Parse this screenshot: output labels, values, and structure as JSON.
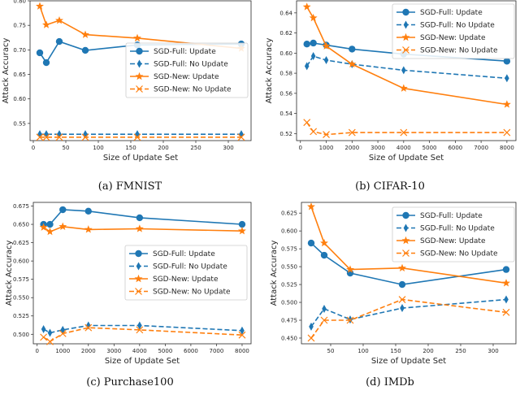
{
  "colors": {
    "sgd_full": "#1f77b4",
    "sgd_new": "#ff7f0e"
  },
  "chart_data": [
    {
      "type": "line",
      "caption": "(a) FMNIST",
      "xlabel": "Size of Update Set",
      "ylabel": "Attack Accuracy",
      "xlim": [
        -5,
        335
      ],
      "ylim": [
        0.515,
        0.8
      ],
      "xticks": [
        0,
        50,
        100,
        150,
        200,
        250,
        300
      ],
      "yticks": [
        "0.55",
        "0.60",
        "0.65",
        "0.70",
        "0.75",
        "0.80"
      ],
      "legend": "center-right",
      "x": [
        10,
        20,
        40,
        80,
        160,
        320
      ],
      "series": [
        {
          "name": "SGD-Full: Update",
          "color": "sgd_full",
          "style": "solid",
          "marker": "circle",
          "values": [
            0.694,
            0.674,
            0.717,
            0.699,
            0.71,
            0.712
          ]
        },
        {
          "name": "SGD-Full: No Update",
          "color": "sgd_full",
          "style": "dashed",
          "marker": "thin-diamond",
          "values": [
            0.528,
            0.528,
            0.528,
            0.528,
            0.528,
            0.528
          ]
        },
        {
          "name": "SGD-New: Update",
          "color": "sgd_new",
          "style": "solid",
          "marker": "star",
          "values": [
            0.789,
            0.751,
            0.76,
            0.731,
            0.724,
            0.703
          ]
        },
        {
          "name": "SGD-New: No Update",
          "color": "sgd_new",
          "style": "dashed",
          "marker": "x",
          "values": [
            0.522,
            0.522,
            0.522,
            0.522,
            0.522,
            0.522
          ]
        }
      ]
    },
    {
      "type": "line",
      "caption": "(b) CIFAR-10",
      "xlabel": "Size of Update Set",
      "ylabel": "Attack Accuracy",
      "xlim": [
        -150,
        8350
      ],
      "ylim": [
        0.513,
        0.652
      ],
      "xticks": [
        0,
        1000,
        2000,
        3000,
        4000,
        5000,
        6000,
        7000,
        8000
      ],
      "yticks": [
        "0.52",
        "0.54",
        "0.56",
        "0.58",
        "0.60",
        "0.62",
        "0.64"
      ],
      "legend": "upper-right",
      "x": [
        250,
        500,
        1000,
        2000,
        4000,
        8000
      ],
      "series": [
        {
          "name": "SGD-Full: Update",
          "color": "sgd_full",
          "style": "solid",
          "marker": "circle",
          "values": [
            0.609,
            0.61,
            0.608,
            0.604,
            0.599,
            0.592
          ]
        },
        {
          "name": "SGD-Full: No Update",
          "color": "sgd_full",
          "style": "dashed",
          "marker": "thin-diamond",
          "values": [
            0.587,
            0.597,
            0.593,
            0.589,
            0.583,
            0.575
          ]
        },
        {
          "name": "SGD-New: Update",
          "color": "sgd_new",
          "style": "solid",
          "marker": "star",
          "values": [
            0.646,
            0.635,
            0.607,
            0.589,
            0.565,
            0.549
          ]
        },
        {
          "name": "SGD-New: No Update",
          "color": "sgd_new",
          "style": "dashed",
          "marker": "x",
          "values": [
            0.531,
            0.522,
            0.519,
            0.521,
            0.521,
            0.521
          ]
        }
      ]
    },
    {
      "type": "line",
      "caption": "(c) Purchase100",
      "xlabel": "Size of Update Set",
      "ylabel": "Attack Accuracy",
      "xlim": [
        -150,
        8350
      ],
      "ylim": [
        0.487,
        0.68
      ],
      "xticks": [
        0,
        1000,
        2000,
        3000,
        4000,
        5000,
        6000,
        7000,
        8000
      ],
      "yticks": [
        "0.500",
        "0.525",
        "0.550",
        "0.575",
        "0.600",
        "0.625",
        "0.650",
        "0.675"
      ],
      "legend": "center-right",
      "x": [
        250,
        500,
        1000,
        2000,
        4000,
        8000
      ],
      "series": [
        {
          "name": "SGD-Full: Update",
          "color": "sgd_full",
          "style": "solid",
          "marker": "circle",
          "values": [
            0.65,
            0.65,
            0.67,
            0.668,
            0.659,
            0.65
          ]
        },
        {
          "name": "SGD-Full: No Update",
          "color": "sgd_full",
          "style": "dashed",
          "marker": "thin-diamond",
          "values": [
            0.507,
            0.502,
            0.506,
            0.512,
            0.512,
            0.505
          ]
        },
        {
          "name": "SGD-New: Update",
          "color": "sgd_new",
          "style": "solid",
          "marker": "star",
          "values": [
            0.646,
            0.64,
            0.647,
            0.643,
            0.644,
            0.641
          ]
        },
        {
          "name": "SGD-New: No Update",
          "color": "sgd_new",
          "style": "dashed",
          "marker": "x",
          "values": [
            0.496,
            0.49,
            0.501,
            0.509,
            0.506,
            0.499
          ]
        }
      ]
    },
    {
      "type": "line",
      "caption": "(d) IMDb",
      "xlabel": "Size of Update Set",
      "ylabel": "Attack Accuracy",
      "xlim": [
        5,
        335
      ],
      "ylim": [
        0.442,
        0.64
      ],
      "xticks": [
        50,
        100,
        150,
        200,
        250,
        300
      ],
      "yticks": [
        "0.450",
        "0.475",
        "0.500",
        "0.525",
        "0.550",
        "0.575",
        "0.600",
        "0.625"
      ],
      "legend": "upper-right",
      "x": [
        20,
        40,
        80,
        160,
        320
      ],
      "series": [
        {
          "name": "SGD-Full: Update",
          "color": "sgd_full",
          "style": "solid",
          "marker": "circle",
          "values": [
            0.583,
            0.566,
            0.541,
            0.525,
            0.546
          ]
        },
        {
          "name": "SGD-Full: No Update",
          "color": "sgd_full",
          "style": "dashed",
          "marker": "thin-diamond",
          "values": [
            0.466,
            0.491,
            0.476,
            0.492,
            0.504
          ]
        },
        {
          "name": "SGD-New: Update",
          "color": "sgd_new",
          "style": "solid",
          "marker": "star",
          "values": [
            0.634,
            0.583,
            0.546,
            0.548,
            0.527
          ]
        },
        {
          "name": "SGD-New: No Update",
          "color": "sgd_new",
          "style": "dashed",
          "marker": "x",
          "values": [
            0.45,
            0.475,
            0.475,
            0.504,
            0.486
          ]
        }
      ]
    }
  ]
}
